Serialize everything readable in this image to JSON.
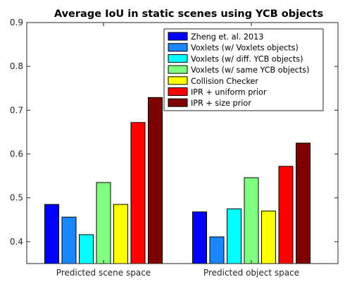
{
  "chart_data": {
    "type": "bar",
    "title": "Average IoU in static scenes using YCB objects",
    "xlabel": "",
    "ylabel": "",
    "ylim": [
      0.35,
      0.9
    ],
    "yticks": [
      "0.4",
      "0.5",
      "0.6",
      "0.7",
      "0.8",
      "0.9"
    ],
    "categories": [
      "Predicted scene space",
      "Predicted object space"
    ],
    "legend_position": "top-right",
    "grid": false,
    "series": [
      {
        "name": "Zheng et. al. 2013",
        "color": "#0000ff",
        "values": [
          0.485,
          0.468
        ]
      },
      {
        "name": "Voxlets (w/ Voxlets objects)",
        "color": "#1a86ff",
        "values": [
          0.456,
          0.411
        ]
      },
      {
        "name": "Voxlets (w/ diff. YCB objects)",
        "color": "#00ffff",
        "values": [
          0.416,
          0.475
        ]
      },
      {
        "name": "Voxlets (w/ same YCB objects)",
        "color": "#80ff80",
        "values": [
          0.535,
          0.546
        ]
      },
      {
        "name": "Collision Checker",
        "color": "#ffff00",
        "values": [
          0.485,
          0.47
        ]
      },
      {
        "name": "IPR + uniform prior",
        "color": "#ff0000",
        "values": [
          0.672,
          0.572
        ]
      },
      {
        "name": "IPR + size prior",
        "color": "#800000",
        "values": [
          0.729,
          0.625
        ]
      }
    ]
  }
}
